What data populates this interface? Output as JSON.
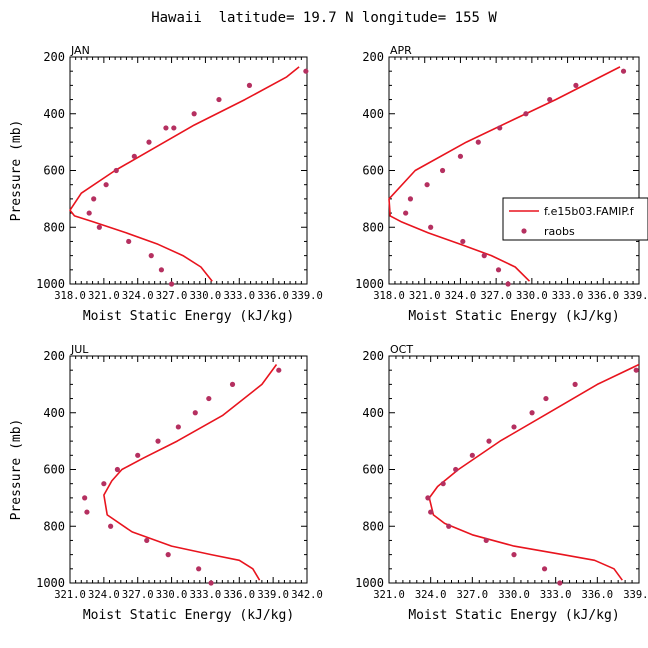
{
  "title": "Hawaii  latitude= 19.7 N longitude= 155 W",
  "colors": {
    "model": "#e8141e",
    "obs": "#b53060"
  },
  "legend": {
    "model_label": "f.e15b03.FAMIP.f",
    "obs_label": "raobs"
  },
  "chart_data": [
    {
      "type": "line",
      "panel_label": "JAN",
      "xlabel": "Moist Static Energy (kJ/kg)",
      "ylabel": "Pressure (mb)",
      "xlim": [
        318.0,
        339.0
      ],
      "ylim": [
        1000,
        200
      ],
      "xticks": [
        "318.0",
        "321.0",
        "324.0",
        "327.0",
        "330.0",
        "333.0",
        "336.0",
        "339.0"
      ],
      "yticks": [
        "200",
        "400",
        "600",
        "800",
        "1000"
      ],
      "series": [
        {
          "name": "f.e15b03.FAMIP.f",
          "x": [
            330.6,
            329.6,
            328.0,
            325.8,
            323.0,
            320.0,
            318.4,
            318.0,
            319.0,
            322.0,
            325.5,
            329.0,
            333.5,
            337.2,
            338.3
          ],
          "y": [
            990,
            940,
            900,
            860,
            820,
            780,
            760,
            740,
            680,
            600,
            520,
            440,
            350,
            270,
            235
          ]
        },
        {
          "name": "raobs",
          "x": [
            327.0,
            326.1,
            325.2,
            323.2,
            320.6,
            319.7,
            320.1,
            321.2,
            322.1,
            323.7,
            325.0,
            326.5,
            327.2,
            329.0,
            331.2,
            333.9,
            338.9
          ],
          "y": [
            1000,
            950,
            900,
            850,
            800,
            750,
            700,
            650,
            600,
            550,
            500,
            450,
            450,
            400,
            350,
            300,
            250
          ]
        }
      ]
    },
    {
      "type": "line",
      "panel_label": "APR",
      "xlabel": "Moist Static Energy (kJ/kg)",
      "ylabel": "",
      "xlim": [
        318.0,
        339.0
      ],
      "ylim": [
        1000,
        200
      ],
      "xticks": [
        "318.0",
        "321.0",
        "324.0",
        "327.0",
        "330.0",
        "333.0",
        "336.0",
        "339.0"
      ],
      "yticks": [
        "200",
        "400",
        "600",
        "800",
        "1000"
      ],
      "series": [
        {
          "name": "f.e15b03.FAMIP.f",
          "x": [
            329.8,
            328.6,
            326.6,
            324.0,
            321.3,
            319.0,
            318.1,
            318.0,
            320.2,
            324.5,
            328.5,
            332.0,
            337.4
          ],
          "y": [
            990,
            940,
            900,
            860,
            820,
            780,
            760,
            700,
            600,
            500,
            420,
            350,
            235
          ]
        },
        {
          "name": "raobs",
          "x": [
            328.0,
            327.2,
            326.0,
            324.2,
            321.5,
            319.4,
            319.8,
            321.2,
            322.5,
            324.0,
            325.5,
            327.3,
            329.5,
            331.5,
            333.7,
            337.7
          ],
          "y": [
            1000,
            950,
            900,
            850,
            800,
            750,
            700,
            650,
            600,
            550,
            500,
            450,
            400,
            350,
            300,
            250
          ]
        }
      ]
    },
    {
      "type": "line",
      "panel_label": "JUL",
      "xlabel": "Moist Static Energy (kJ/kg)",
      "ylabel": "Pressure (mb)",
      "xlim": [
        321.0,
        342.0
      ],
      "ylim": [
        1000,
        200
      ],
      "xticks": [
        "321.0",
        "324.0",
        "327.0",
        "330.0",
        "333.0",
        "336.0",
        "339.0",
        "342.0"
      ],
      "yticks": [
        "200",
        "400",
        "600",
        "800",
        "1000"
      ],
      "series": [
        {
          "name": "f.e15b03.FAMIP.f",
          "x": [
            337.8,
            337.2,
            336.0,
            333.5,
            330.0,
            326.5,
            324.3,
            324.0,
            324.7,
            325.6,
            327.5,
            330.5,
            334.5,
            338.0,
            339.3
          ],
          "y": [
            990,
            950,
            920,
            900,
            870,
            820,
            760,
            690,
            640,
            600,
            560,
            500,
            410,
            300,
            230
          ]
        },
        {
          "name": "raobs",
          "x": [
            333.5,
            332.4,
            329.7,
            327.8,
            324.6,
            322.5,
            322.3,
            324.0,
            325.2,
            327.0,
            328.8,
            330.6,
            332.1,
            333.3,
            335.4,
            339.5
          ],
          "y": [
            1000,
            950,
            900,
            850,
            800,
            750,
            700,
            650,
            600,
            550,
            500,
            450,
            400,
            350,
            300,
            250
          ]
        }
      ]
    },
    {
      "type": "line",
      "panel_label": "OCT",
      "xlabel": "Moist Static Energy (kJ/kg)",
      "ylabel": "",
      "xlim": [
        321.0,
        339.0
      ],
      "ylim": [
        1000,
        200
      ],
      "xticks": [
        "321.0",
        "324.0",
        "327.0",
        "330.0",
        "333.0",
        "336.0",
        "339.0"
      ],
      "yticks": [
        "200",
        "400",
        "600",
        "800",
        "1000"
      ],
      "series": [
        {
          "name": "f.e15b03.FAMIP.f",
          "x": [
            337.8,
            337.2,
            335.8,
            333.5,
            330.0,
            327.0,
            325.0,
            324.2,
            323.9,
            324.5,
            326.0,
            329.0,
            332.5,
            336.0,
            339.0
          ],
          "y": [
            990,
            950,
            920,
            900,
            870,
            830,
            790,
            760,
            700,
            660,
            600,
            500,
            400,
            300,
            230
          ]
        },
        {
          "name": "raobs",
          "x": [
            333.3,
            332.2,
            330.0,
            328.0,
            325.3,
            324.0,
            323.8,
            324.9,
            325.8,
            327.0,
            328.2,
            330.0,
            331.3,
            332.3,
            334.4,
            338.8
          ],
          "y": [
            1000,
            950,
            900,
            850,
            800,
            750,
            700,
            650,
            600,
            550,
            500,
            450,
            400,
            350,
            300,
            250
          ]
        }
      ]
    }
  ]
}
